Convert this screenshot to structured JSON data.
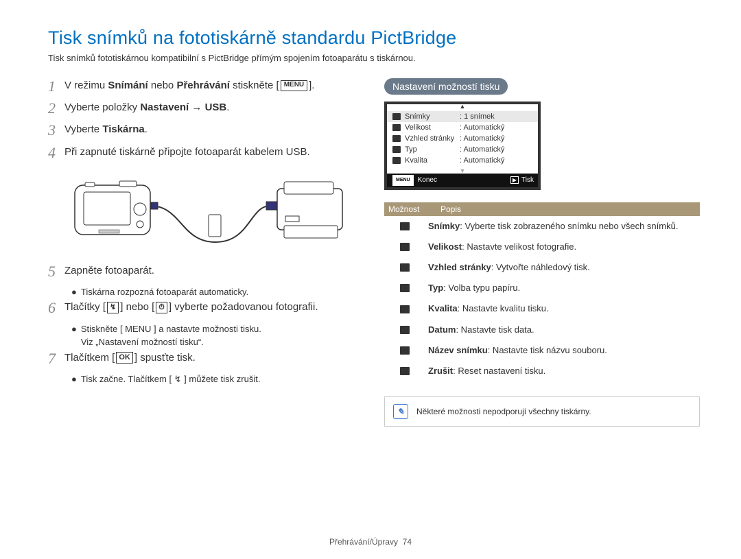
{
  "title": "Tisk snímků na fototiskárně standardu PictBridge",
  "subtitle": "Tisk snímků fototiskárnou kompatibilní s PictBridge přímým spojením fotoaparátu s tiskárnou.",
  "steps": [
    {
      "n": "1",
      "pre": "V režimu ",
      "b1": "Snímání",
      "mid": " nebo ",
      "b2": "Přehrávání",
      "post": " stiskněte [",
      "icon": "MENU",
      "end": "]."
    },
    {
      "n": "2",
      "pre": "Vyberte položky ",
      "b1": "Nastavení",
      "mid": " → ",
      "b2": "USB",
      "post": "."
    },
    {
      "n": "3",
      "pre": "Vyberte ",
      "b1": "Tiskárna",
      "post": "."
    },
    {
      "n": "4",
      "pre": "Při zapnuté tiskárně připojte fotoaparát kabelem USB."
    },
    {
      "n": "5",
      "pre": "Zapněte fotoaparát.",
      "sub": [
        "Tiskárna rozpozná fotoaparát automaticky."
      ]
    },
    {
      "n": "6",
      "pre": "Tlačítky [",
      "ic1": "↯",
      "mid": "] nebo [",
      "ic2": "⏱",
      "post": "] vyberte požadovanou fotografii.",
      "sub": [
        "Stiskněte [ MENU ] a nastavte možnosti tisku.\nViz „Nastavení možností tisku“."
      ]
    },
    {
      "n": "7",
      "pre": "Tlačítkem [",
      "ic1": "OK",
      "post": "] spusťte tisk.",
      "sub": [
        "Tisk začne. Tlačítkem [ ↯ ] můžete tisk zrušit."
      ]
    }
  ],
  "right_header": "Nastavení možností tisku",
  "screen": {
    "rows": [
      {
        "icon": "▭",
        "k": "Snímky",
        "v": ": 1 snímek",
        "sel": true
      },
      {
        "icon": "▭",
        "k": "Velikost",
        "v": ": Automatický"
      },
      {
        "icon": "▦",
        "k": "Vzhled stránky",
        "v": ": Automatický"
      },
      {
        "icon": "◍",
        "k": "Typ",
        "v": ": Automatický"
      },
      {
        "icon": "◆",
        "k": "Kvalita",
        "v": ": Automatický"
      }
    ],
    "foot_left": "Konec",
    "foot_left_icon": "MENU",
    "foot_right": "Tisk",
    "foot_right_icon": "▶"
  },
  "opt_header": {
    "c1": "Možnost",
    "c2": "Popis"
  },
  "options": [
    {
      "icon": "▭",
      "b": "Snímky",
      "t": ": Vyberte tisk zobrazeného snímku nebo všech snímků."
    },
    {
      "icon": "▭",
      "b": "Velikost",
      "t": ": Nastavte velikost fotografie."
    },
    {
      "icon": "▦",
      "b": "Vzhled stránky",
      "t": ": Vytvořte náhledový tisk."
    },
    {
      "icon": "◍",
      "b": "Typ",
      "t": ": Volba typu papíru."
    },
    {
      "icon": "◆",
      "b": "Kvalita",
      "t": ": Nastavte kvalitu tisku."
    },
    {
      "icon": "📅",
      "b": "Datum",
      "t": ": Nastavte tisk data."
    },
    {
      "icon": "🗎",
      "b": "Název snímku",
      "t": ": Nastavte tisk názvu souboru."
    },
    {
      "icon": "↻",
      "b": "Zrušit",
      "t": ": Reset nastavení tisku."
    }
  ],
  "note": "Některé možnosti nepodporují všechny tiskárny.",
  "footer": {
    "a": "Přehrávání/Úpravy",
    "b": "74"
  },
  "illus_colors": {
    "line": "#333",
    "fill": "#fff",
    "accent": "#0060a0"
  }
}
